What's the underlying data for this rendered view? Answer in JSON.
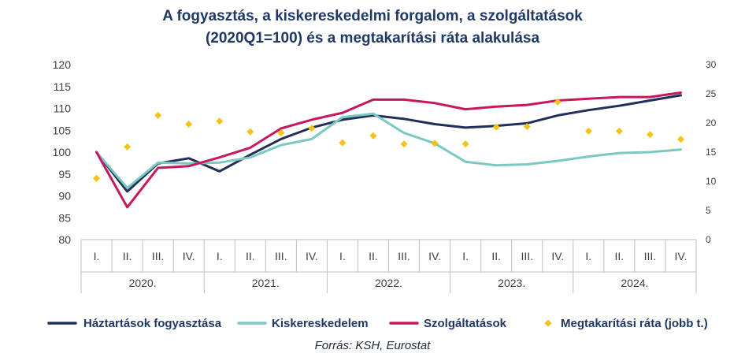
{
  "chart_data": {
    "type": "line",
    "title_line1": "A fogyasztás, a kiskereskedelmi forgalom, a szolgáltatások",
    "title_line2": "(2020Q1=100) és a megtakarítási ráta alakulása",
    "quarters": [
      "I.",
      "II.",
      "III.",
      "IV.",
      "I.",
      "II.",
      "III.",
      "IV.",
      "I.",
      "II.",
      "III.",
      "IV.",
      "I.",
      "II.",
      "III.",
      "IV.",
      "I.",
      "II.",
      "III.",
      "IV."
    ],
    "years": [
      "2020.",
      "2021.",
      "2022.",
      "2023.",
      "2024."
    ],
    "left_axis": {
      "min": 80,
      "max": 120,
      "ticks": [
        80,
        85,
        90,
        95,
        100,
        105,
        110,
        115,
        120
      ]
    },
    "right_axis": {
      "min": 0,
      "max": 30,
      "ticks": [
        0,
        5,
        10,
        15,
        20,
        25,
        30
      ]
    },
    "series": [
      {
        "name": "Háztartások fogyasztása",
        "axis": "left",
        "kind": "line",
        "color": "#1f2f5a",
        "values": [
          100.0,
          91.0,
          97.4,
          98.6,
          95.6,
          99.4,
          103.0,
          105.6,
          107.4,
          108.4,
          107.6,
          106.4,
          105.6,
          106.0,
          106.6,
          108.4,
          109.6,
          110.6,
          111.8,
          113.0
        ]
      },
      {
        "name": "Kiskereskedelem",
        "axis": "left",
        "kind": "line",
        "color": "#7cc9c2",
        "values": [
          100.0,
          91.8,
          97.6,
          97.4,
          97.6,
          98.8,
          101.6,
          103.0,
          108.0,
          108.8,
          104.4,
          102.0,
          97.8,
          97.0,
          97.2,
          98.0,
          99.0,
          99.8,
          100.0,
          100.6
        ]
      },
      {
        "name": "Szolgáltatások",
        "axis": "left",
        "kind": "line",
        "color": "#c8175d",
        "values": [
          100.0,
          87.4,
          96.4,
          96.8,
          98.8,
          101.0,
          105.4,
          107.4,
          109.0,
          112.0,
          112.0,
          111.2,
          109.8,
          110.4,
          110.8,
          111.8,
          112.2,
          112.6,
          112.6,
          113.6
        ]
      },
      {
        "name": "Megtakarítási ráta (jobb t.)",
        "axis": "right",
        "kind": "marker",
        "color": "#f5c218",
        "values": [
          10.5,
          15.9,
          21.3,
          19.8,
          20.3,
          18.5,
          18.3,
          19.1,
          16.6,
          17.8,
          16.4,
          16.5,
          16.4,
          19.3,
          19.4,
          23.6,
          18.6,
          18.6,
          18.0,
          17.2
        ]
      }
    ],
    "source": "Forrás: KSH, Eurostat"
  }
}
